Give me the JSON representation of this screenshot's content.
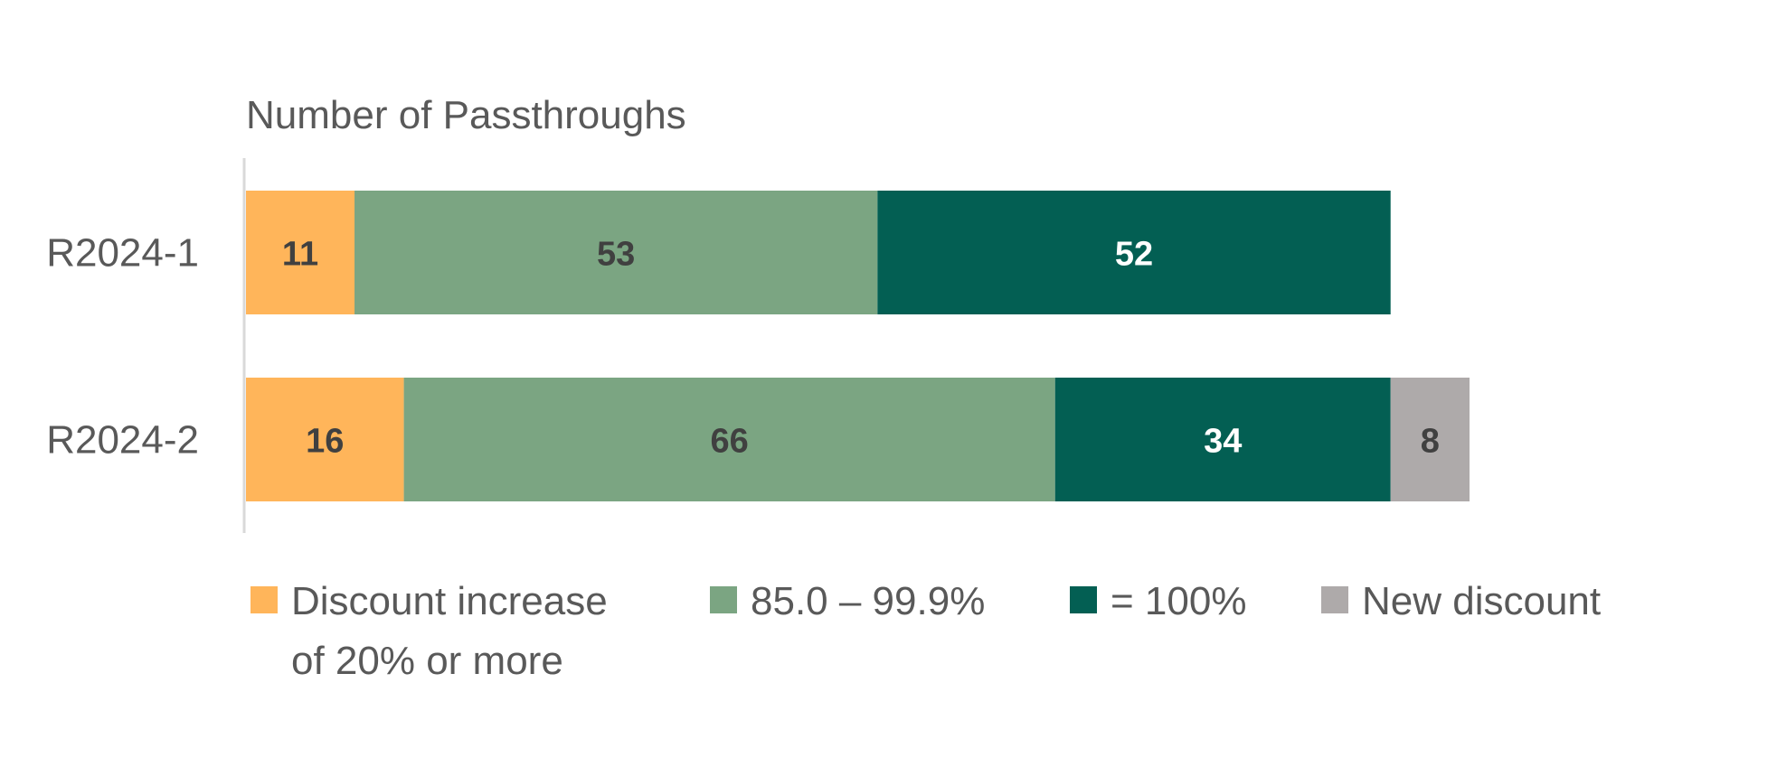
{
  "chart_data": {
    "type": "bar",
    "orientation": "horizontal",
    "stacked": true,
    "title": "",
    "xlabel": "Number of Passthroughs",
    "ylabel": "",
    "categories": [
      "R2024-1",
      "R2024-2"
    ],
    "xlim": [
      0,
      124
    ],
    "grid": false,
    "legend_position": "bottom",
    "series": [
      {
        "name": "Discount increase of 20% or more",
        "legend_lines": [
          "Discount increase",
          "of 20% or more"
        ],
        "color": "#FFB55A",
        "label_color": "#404040",
        "values": [
          11,
          16
        ]
      },
      {
        "name": "85.0 – 99.9%",
        "legend_lines": [
          "85.0 – 99.9%"
        ],
        "color": "#7BA582",
        "label_color": "#404040",
        "values": [
          53,
          66
        ]
      },
      {
        "name": "= 100%",
        "legend_lines": [
          "= 100%"
        ],
        "color": "#035F53",
        "label_color": "#FFFFFF",
        "values": [
          52,
          34
        ]
      },
      {
        "name": "New discount",
        "legend_lines": [
          "New discount"
        ],
        "color": "#AEAAAA",
        "label_color": "#404040",
        "values": [
          null,
          8
        ]
      }
    ]
  }
}
